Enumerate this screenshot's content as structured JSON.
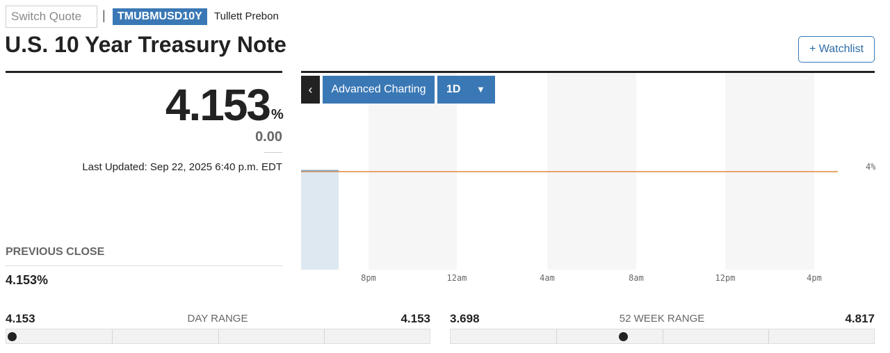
{
  "header": {
    "switch_quote": "Switch Quote",
    "separator": "|",
    "ticker": "TMUBMUSD10Y",
    "source": "Tullett Prebon",
    "title": "U.S. 10 Year Treasury Note",
    "watchlist": "+ Watchlist"
  },
  "quote": {
    "price": "4.153",
    "unit": "%",
    "change": "0.00",
    "last_updated": "Last Updated: Sep 22, 2025 6:40 p.m. EDT"
  },
  "previous_close": {
    "label": "PREVIOUS CLOSE",
    "value": "4.153%"
  },
  "chart": {
    "back": "‹",
    "advanced": "Advanced Charting",
    "period": "1D",
    "x_labels": [
      "8pm",
      "12am",
      "4am",
      "8am",
      "12pm",
      "4pm"
    ],
    "y_label": "4%"
  },
  "day_range": {
    "low": "4.153",
    "label": "DAY RANGE",
    "high": "4.153"
  },
  "week_range": {
    "low": "3.698",
    "label": "52 WEEK RANGE",
    "high": "4.817"
  }
}
